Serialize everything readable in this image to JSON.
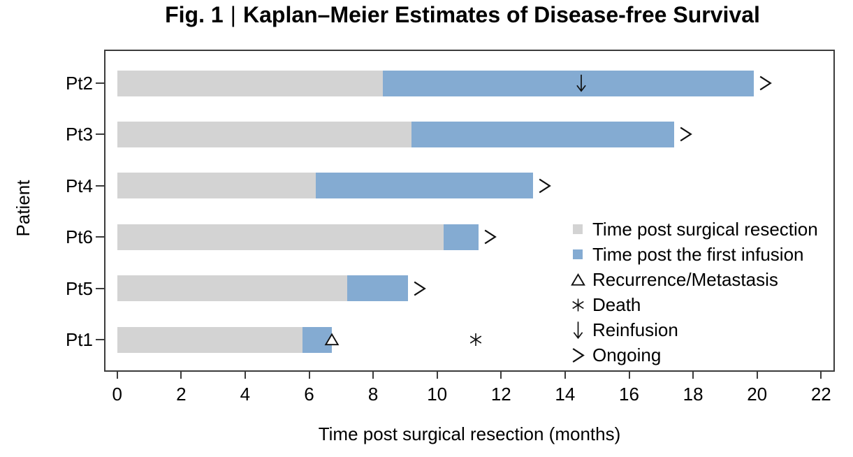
{
  "title": {
    "prefix": "Fig. 1",
    "separator": "|",
    "text": "Kaplan–Meier Estimates of Disease-free Survival"
  },
  "chart_data": {
    "type": "bar",
    "variant": "horizontal-stacked-swimmer-plot",
    "title": "Fig. 1 | Kaplan–Meier Estimates of Disease-free Survival",
    "xlabel": "Time post surgical resection (months)",
    "ylabel": "Patient",
    "xlim": [
      0,
      22
    ],
    "xticks": [
      0,
      2,
      4,
      6,
      8,
      10,
      12,
      14,
      16,
      18,
      20,
      22
    ],
    "grid": false,
    "legend_position": "inside-right",
    "categories": [
      "Pt2",
      "Pt3",
      "Pt4",
      "Pt6",
      "Pt5",
      "Pt1"
    ],
    "series": [
      {
        "name": "Time post surgical resection",
        "color": "#d3d3d3",
        "values": [
          8.3,
          9.2,
          6.2,
          10.2,
          7.2,
          5.8
        ]
      },
      {
        "name": "Time post the first infusion",
        "color": "#84abd2",
        "values": [
          11.6,
          8.2,
          6.8,
          1.1,
          1.9,
          0.9
        ]
      }
    ],
    "bar_totals_months": [
      19.9,
      17.4,
      13,
      11.3,
      9.1,
      6.7
    ],
    "events": {
      "reinfusion": [
        {
          "patient": "Pt2",
          "month": 14.5
        }
      ],
      "recurrence_metastasis": [
        {
          "patient": "Pt1",
          "month": 6.7
        }
      ],
      "death": [
        {
          "patient": "Pt1",
          "month": 11.2
        }
      ],
      "ongoing": [
        "Pt2",
        "Pt3",
        "Pt4",
        "Pt6",
        "Pt5"
      ]
    },
    "colors": {
      "surgical": "#d3d3d3",
      "infusion": "#84abd2",
      "axis": "#3c3c3c",
      "text": "#000000"
    }
  },
  "legend": {
    "items": [
      {
        "marker": "swatch",
        "color": "#d3d3d3",
        "label": "Time post surgical resection"
      },
      {
        "marker": "swatch",
        "color": "#84abd2",
        "label": "Time post the first infusion"
      },
      {
        "marker": "triangle",
        "label": "Recurrence/Metastasis"
      },
      {
        "marker": "asterisk",
        "label": "Death"
      },
      {
        "marker": "arrow-down",
        "label": "Reinfusion"
      },
      {
        "marker": "chevron-right",
        "label": "Ongoing"
      }
    ]
  }
}
